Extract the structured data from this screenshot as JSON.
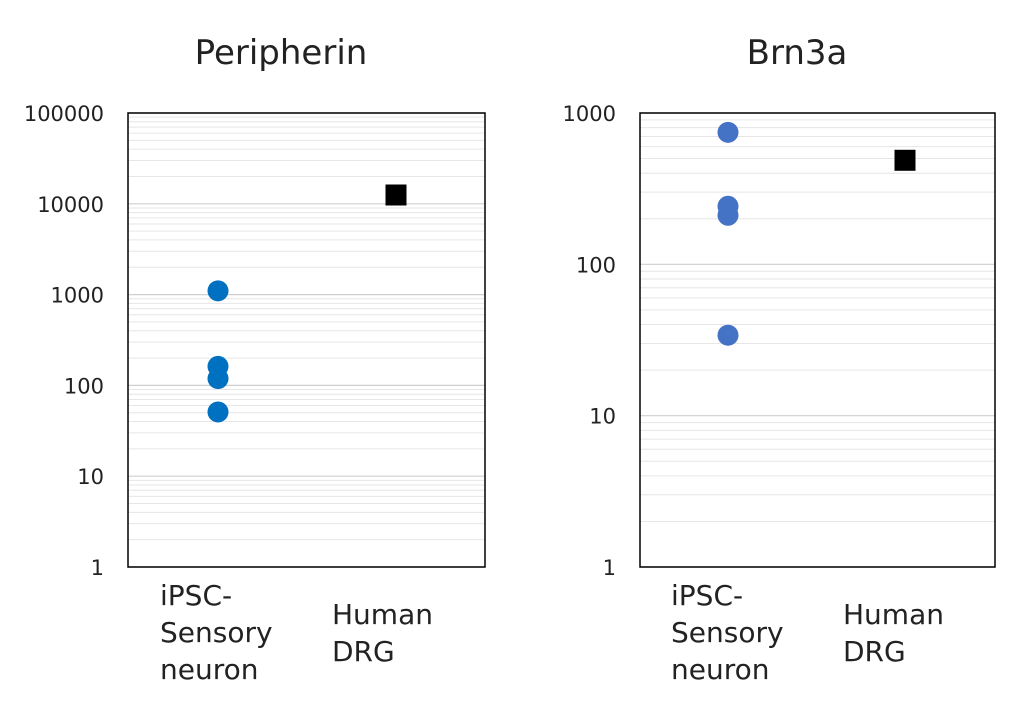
{
  "chart_data": [
    {
      "type": "scatter",
      "title": "Peripherin",
      "yscale": "log",
      "ylim": [
        1,
        100000
      ],
      "yticks": [
        "1",
        "10",
        "100",
        "1000",
        "10000",
        "100000"
      ],
      "categories": [
        "iPSC-\nSensory\nneuron",
        "Human\nDRG"
      ],
      "grid": true,
      "series": [
        {
          "name": "iPSC-Sensory neuron",
          "category": 0,
          "marker": "circle",
          "color": "#0070C0",
          "values": [
            1100,
            162,
            119,
            51
          ]
        },
        {
          "name": "Human DRG",
          "category": 1,
          "marker": "square",
          "color": "#000000",
          "values": [
            12500
          ]
        }
      ]
    },
    {
      "type": "scatter",
      "title": "Brn3a",
      "yscale": "log",
      "ylim": [
        1,
        1000
      ],
      "yticks": [
        "1",
        "10",
        "100",
        "1000"
      ],
      "categories": [
        "iPSC-\nSensory\nneuron",
        "Human\nDRG"
      ],
      "grid": true,
      "series": [
        {
          "name": "iPSC-Sensory neuron",
          "category": 0,
          "marker": "circle",
          "color": "#4472C4",
          "values": [
            745,
            242,
            211,
            34
          ]
        },
        {
          "name": "Human DRG",
          "category": 1,
          "marker": "square",
          "color": "#000000",
          "values": [
            487
          ]
        }
      ]
    }
  ]
}
